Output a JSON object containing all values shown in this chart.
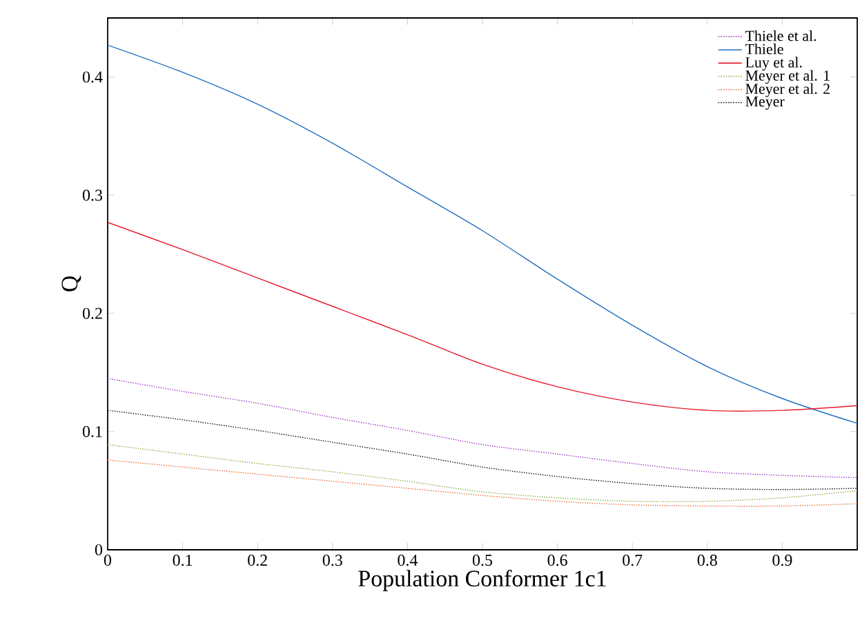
{
  "chart_data": {
    "type": "line",
    "xlabel": "Population Conformer 1c1",
    "ylabel": "Q",
    "x": [
      0,
      0.1,
      0.2,
      0.3,
      0.4,
      0.5,
      0.6,
      0.7,
      0.8,
      0.9,
      1.0
    ],
    "xlim": [
      0,
      1
    ],
    "ylim": [
      0,
      0.45
    ],
    "xticks": [
      0,
      0.1,
      0.2,
      0.3,
      0.4,
      0.5,
      0.6,
      0.7,
      0.8,
      0.9
    ],
    "yticks": [
      0,
      0.1,
      0.2,
      0.3,
      0.4
    ],
    "grid": false,
    "legend": "top right",
    "marker": "none",
    "series": [
      {
        "name": "Thiele et al.",
        "color": "#9a2bc0",
        "line_style": "dotted",
        "values": [
          0.145,
          0.134,
          0.124,
          0.112,
          0.101,
          0.089,
          0.081,
          0.073,
          0.066,
          0.063,
          0.061
        ]
      },
      {
        "name": "Thiele",
        "color": "#1f6fc0",
        "line_style": "solid",
        "values": [
          0.427,
          0.404,
          0.377,
          0.344,
          0.307,
          0.27,
          0.229,
          0.19,
          0.155,
          0.128,
          0.107
        ]
      },
      {
        "name": "Luy et al.",
        "color": "#e8192c",
        "line_style": "solid",
        "values": [
          0.277,
          0.254,
          0.23,
          0.206,
          0.182,
          0.157,
          0.138,
          0.125,
          0.118,
          0.118,
          0.122
        ]
      },
      {
        "name": "Meyer et al. 1",
        "color": "#7fb040",
        "line_style": "dotted",
        "values": [
          0.089,
          0.081,
          0.073,
          0.066,
          0.058,
          0.049,
          0.044,
          0.041,
          0.041,
          0.044,
          0.05
        ]
      },
      {
        "name": "Meyer et al. 2",
        "color": "#e66a2c",
        "line_style": "dotted",
        "values": [
          0.076,
          0.07,
          0.064,
          0.058,
          0.052,
          0.046,
          0.041,
          0.038,
          0.037,
          0.037,
          0.039
        ]
      },
      {
        "name": "Meyer",
        "color": "#000000",
        "line_style": "dotted",
        "values": [
          0.118,
          0.11,
          0.101,
          0.091,
          0.081,
          0.07,
          0.062,
          0.056,
          0.052,
          0.051,
          0.052
        ]
      }
    ]
  }
}
